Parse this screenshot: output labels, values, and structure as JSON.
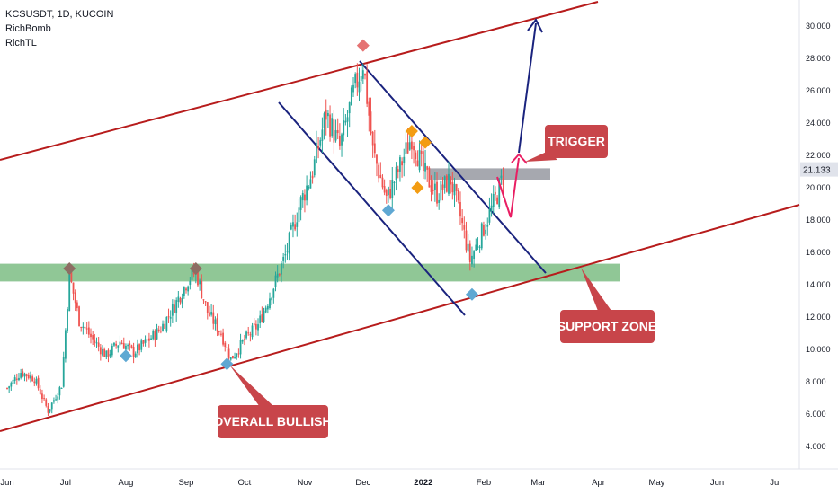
{
  "header": {
    "symbol_line": "KCSUSDT, 1D, KUCOIN",
    "indicators": [
      "RichBomb",
      "RichTL"
    ]
  },
  "chart_data": {
    "type": "candlestick",
    "symbol": "KCSUSDT",
    "timeframe": "1D",
    "exchange": "KUCOIN",
    "current_price": "21.133",
    "y_axis": {
      "ticks": [
        "30.000",
        "28.000",
        "26.000",
        "24.000",
        "22.000",
        "20.000",
        "18.000",
        "16.000",
        "14.000",
        "12.000",
        "10.000",
        "8.000",
        "6.000",
        "4.000"
      ],
      "range": [
        3,
        31
      ]
    },
    "x_axis": {
      "ticks": [
        {
          "label": "Jun",
          "bold": false
        },
        {
          "label": "Jul",
          "bold": false
        },
        {
          "label": "Aug",
          "bold": false
        },
        {
          "label": "Sep",
          "bold": false
        },
        {
          "label": "Oct",
          "bold": false
        },
        {
          "label": "Nov",
          "bold": false
        },
        {
          "label": "Dec",
          "bold": false
        },
        {
          "label": "2022",
          "bold": true
        },
        {
          "label": "Feb",
          "bold": false
        },
        {
          "label": "Mar",
          "bold": false
        },
        {
          "label": "Apr",
          "bold": false
        },
        {
          "label": "May",
          "bold": false
        },
        {
          "label": "Jun",
          "bold": false
        },
        {
          "label": "Jul",
          "bold": false
        }
      ]
    },
    "price_path": [
      [
        "2021-06-01",
        7.6
      ],
      [
        "2021-06-08",
        8.6
      ],
      [
        "2021-06-15",
        8.2
      ],
      [
        "2021-06-22",
        6.2
      ],
      [
        "2021-06-29",
        7.8
      ],
      [
        "2021-07-03",
        14.6
      ],
      [
        "2021-07-08",
        11.8
      ],
      [
        "2021-07-15",
        10.6
      ],
      [
        "2021-07-22",
        9.6
      ],
      [
        "2021-07-29",
        10.5
      ],
      [
        "2021-08-05",
        9.8
      ],
      [
        "2021-08-12",
        10.5
      ],
      [
        "2021-08-19",
        11.3
      ],
      [
        "2021-08-26",
        12.7
      ],
      [
        "2021-09-02",
        14.3
      ],
      [
        "2021-09-06",
        14.8
      ],
      [
        "2021-09-12",
        12.3
      ],
      [
        "2021-09-19",
        11.0
      ],
      [
        "2021-09-24",
        9.4
      ],
      [
        "2021-10-01",
        10.6
      ],
      [
        "2021-10-08",
        11.5
      ],
      [
        "2021-10-15",
        13.6
      ],
      [
        "2021-10-22",
        15.8
      ],
      [
        "2021-10-29",
        18.8
      ],
      [
        "2021-11-05",
        21.0
      ],
      [
        "2021-11-12",
        24.6
      ],
      [
        "2021-11-19",
        22.5
      ],
      [
        "2021-11-26",
        25.8
      ],
      [
        "2021-12-01",
        27.8
      ],
      [
        "2021-12-06",
        22.3
      ],
      [
        "2021-12-13",
        19.3
      ],
      [
        "2021-12-20",
        21.3
      ],
      [
        "2021-12-26",
        23.2
      ],
      [
        "2022-01-01",
        21.0
      ],
      [
        "2022-01-08",
        19.6
      ],
      [
        "2022-01-15",
        20.5
      ],
      [
        "2022-01-20",
        18.2
      ],
      [
        "2022-01-25",
        15.5
      ],
      [
        "2022-02-01",
        17.5
      ],
      [
        "2022-02-08",
        19.6
      ],
      [
        "2022-02-12",
        21.1
      ]
    ],
    "zones": [
      {
        "name": "support-zone",
        "price_low": 14.2,
        "price_high": 15.3,
        "color": "#7cbd84"
      },
      {
        "name": "trigger-zone",
        "price_low": 20.5,
        "price_high": 21.2,
        "color": "#9c9ea6"
      }
    ],
    "colors": {
      "up": "#26a69a",
      "down": "#ef5350",
      "channel_outer": "#b71c1c",
      "channel_inner": "#1a237e",
      "projection_pink": "#e91e63",
      "projection_navy": "#1a237e",
      "callout_bg": "#c8454a",
      "diamond_brown": "#8d6e63",
      "diamond_blue": "#5fa8d3",
      "diamond_orange": "#f39c12",
      "diamond_red": "#e57373"
    },
    "annotations": [
      {
        "id": "trigger",
        "text": "TRIGGER"
      },
      {
        "id": "support",
        "text": "SUPPORT ZONE"
      },
      {
        "id": "bullish",
        "text": "OVERALL BULLISH"
      }
    ]
  }
}
